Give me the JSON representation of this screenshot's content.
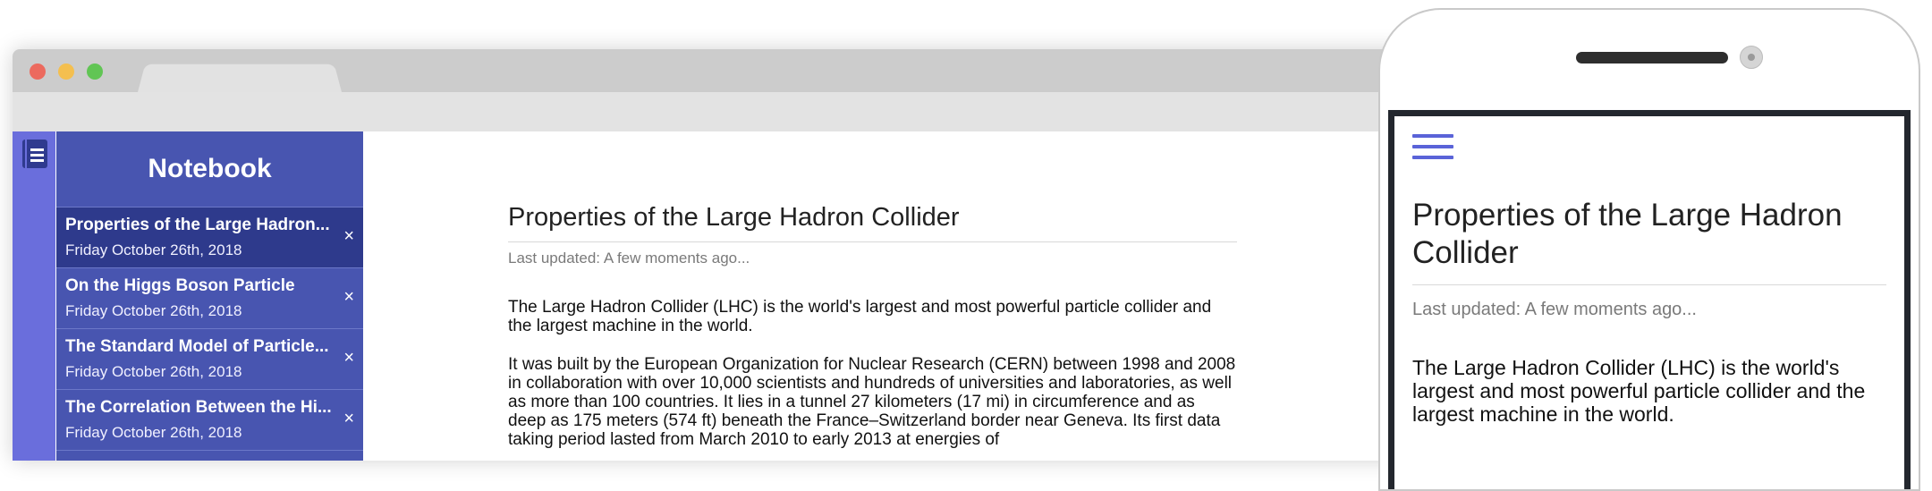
{
  "sidebar": {
    "title": "Notebook",
    "notes": [
      {
        "title": "Properties of the Large Hadron...",
        "date": "Friday October 26th, 2018",
        "active": true
      },
      {
        "title": "On the Higgs Boson Particle",
        "date": "Friday October 26th, 2018",
        "active": false
      },
      {
        "title": "The Standard Model of Particle...",
        "date": "Friday October 26th, 2018",
        "active": false
      },
      {
        "title": "The Correlation Between the Hi...",
        "date": "Friday October 26th, 2018",
        "active": false
      }
    ],
    "close_glyph": "×"
  },
  "document": {
    "title": "Properties of the Large Hadron Collider",
    "updated": "Last updated: A few moments ago...",
    "paragraphs": [
      "The Large Hadron Collider (LHC) is the world's largest and most powerful particle collider and the largest machine in the world.",
      "It was built by the European Organization for Nuclear Research (CERN) between 1998 and 2008 in collaboration with over 10,000 scientists and hundreds of universities and laboratories, as well as more than 100 countries. It lies in a tunnel 27 kilometers (17 mi) in circumference and as deep as 175 meters (574 ft) beneath the France–Switzerland border near Geneva. Its first data taking period lasted from March 2010 to early 2013 at energies of"
    ]
  },
  "mobile": {
    "title": "Properties of the Large Hadron Collider",
    "updated": "Last updated: A few moments ago...",
    "paragraph": "The Large Hadron Collider (LHC) is the world's largest and most powerful particle collider and the largest machine in the world."
  },
  "icons": {
    "notebook": "notebook-icon",
    "menu": "hamburger-menu-icon",
    "close": "close-icon"
  },
  "colors": {
    "icon_strip": "#6a6edc",
    "sidebar": "#4855b0",
    "sidebar_active": "#2e3a8c",
    "accent": "#5a63d8"
  }
}
